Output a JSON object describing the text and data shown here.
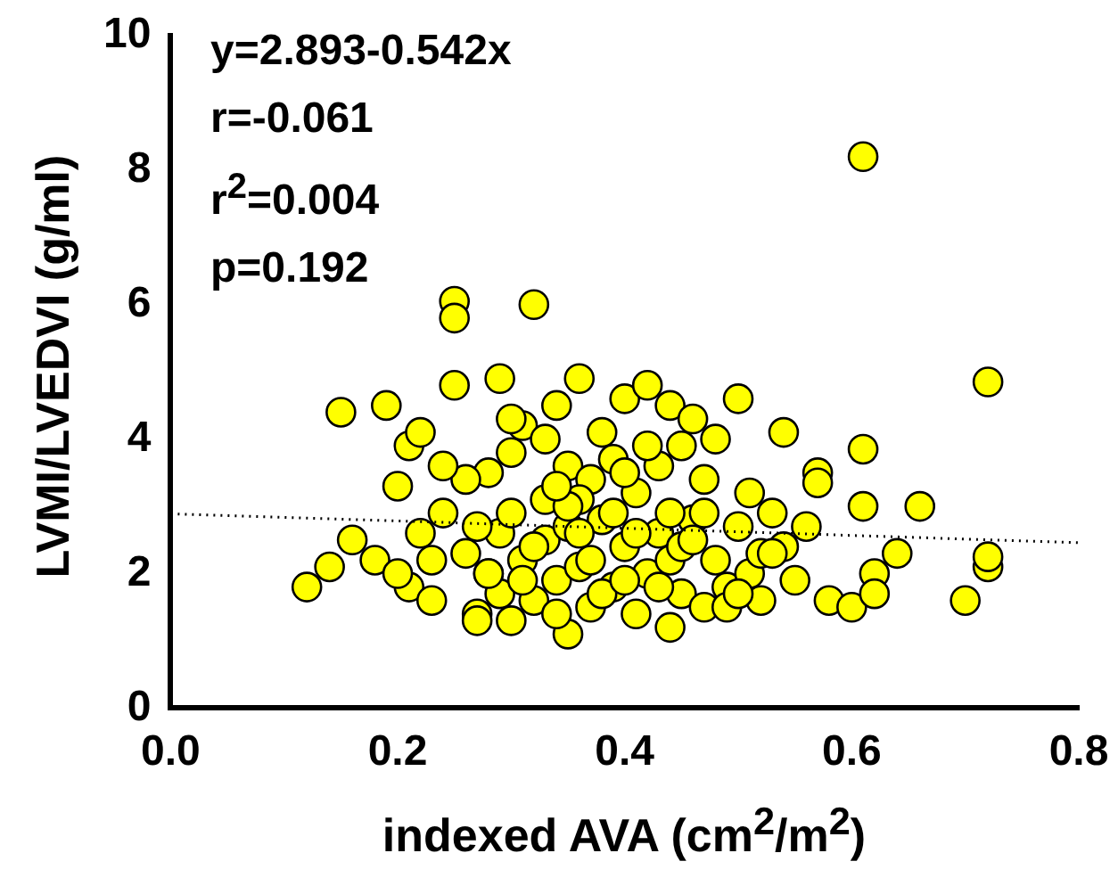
{
  "chart_data": {
    "type": "scatter",
    "xlabel": "indexed AVA (cm$^{2}$/m$^{2}$)",
    "ylabel": "LVMI/LVEDVI (g/ml)",
    "annotations": [
      "y=2.893-0.542x",
      "r=-0.061",
      "r$^{2}$=0.004",
      "p=0.192"
    ],
    "xlim": [
      0,
      0.8
    ],
    "xticks": [
      {
        "value": 0,
        "label": "0.0"
      },
      0.2,
      0.4,
      0.6,
      0.8
    ],
    "ylim": [
      0,
      10
    ],
    "yticks": [
      0,
      2,
      4,
      6,
      8,
      10
    ],
    "grid": false,
    "legend": false,
    "marker": "circle",
    "series": [
      {
        "color": "#ffff00",
        "x": [
          0.12,
          0.14,
          0.16,
          0.15,
          0.19,
          0.18,
          0.2,
          0.21,
          0.22,
          0.21,
          0.23,
          0.22,
          0.24,
          0.25,
          0.25,
          0.25,
          0.26,
          0.27,
          0.28,
          0.28,
          0.29,
          0.29,
          0.3,
          0.3,
          0.31,
          0.31,
          0.32,
          0.32,
          0.33,
          0.33,
          0.34,
          0.34,
          0.35,
          0.35,
          0.35,
          0.36,
          0.36,
          0.37,
          0.37,
          0.38,
          0.38,
          0.39,
          0.39,
          0.4,
          0.4,
          0.41,
          0.41,
          0.42,
          0.42,
          0.43,
          0.43,
          0.44,
          0.44,
          0.44,
          0.45,
          0.45,
          0.46,
          0.46,
          0.47,
          0.47,
          0.48,
          0.48,
          0.49,
          0.5,
          0.5,
          0.51,
          0.51,
          0.52,
          0.53,
          0.54,
          0.54,
          0.55,
          0.56,
          0.57,
          0.57,
          0.58,
          0.6,
          0.61,
          0.61,
          0.61,
          0.62,
          0.62,
          0.64,
          0.66,
          0.7,
          0.72,
          0.72,
          0.72,
          0.23,
          0.26,
          0.27,
          0.29,
          0.3,
          0.31,
          0.33,
          0.34,
          0.36,
          0.37,
          0.39,
          0.4,
          0.41,
          0.43,
          0.45,
          0.47,
          0.49,
          0.52,
          0.24,
          0.28,
          0.32,
          0.35,
          0.38,
          0.42,
          0.44,
          0.46,
          0.5,
          0.53,
          0.2,
          0.27,
          0.3,
          0.36,
          0.4,
          0.34
        ],
        "values": [
          1.8,
          2.1,
          2.5,
          4.4,
          4.5,
          2.2,
          3.3,
          1.8,
          2.6,
          3.9,
          1.6,
          4.1,
          2.9,
          6.05,
          5.8,
          4.8,
          2.3,
          1.4,
          3.5,
          2.0,
          4.9,
          2.6,
          1.3,
          3.8,
          2.2,
          4.2,
          6.0,
          1.6,
          3.1,
          2.5,
          4.5,
          1.9,
          1.1,
          3.6,
          2.7,
          4.9,
          2.1,
          1.5,
          3.4,
          2.8,
          4.1,
          1.8,
          3.7,
          2.4,
          4.6,
          1.4,
          3.2,
          2.0,
          4.8,
          2.6,
          3.6,
          1.2,
          4.5,
          2.2,
          1.7,
          3.9,
          2.8,
          4.3,
          1.5,
          3.4,
          2.2,
          4.0,
          1.8,
          4.6,
          2.7,
          3.2,
          2.0,
          1.6,
          2.9,
          4.1,
          2.4,
          1.9,
          2.7,
          3.5,
          3.35,
          1.6,
          1.5,
          8.2,
          3.85,
          3.0,
          2.0,
          1.7,
          2.3,
          3.0,
          1.6,
          4.85,
          2.1,
          2.25,
          2.2,
          3.4,
          2.7,
          1.7,
          2.9,
          1.9,
          4.0,
          1.4,
          3.1,
          2.2,
          2.9,
          3.5,
          2.6,
          1.8,
          2.4,
          2.9,
          1.5,
          2.3,
          3.6,
          2.0,
          2.4,
          3.0,
          1.7,
          3.9,
          2.9,
          2.5,
          1.7,
          2.3,
          2.0,
          1.3,
          4.3,
          2.6,
          1.9,
          3.3
        ]
      },
      {
        "type": "line",
        "color": "#000000",
        "line_style": "dotted",
        "marker": "none",
        "x": [
          0,
          0.8
        ],
        "values": [
          2.89,
          2.46
        ]
      }
    ]
  }
}
